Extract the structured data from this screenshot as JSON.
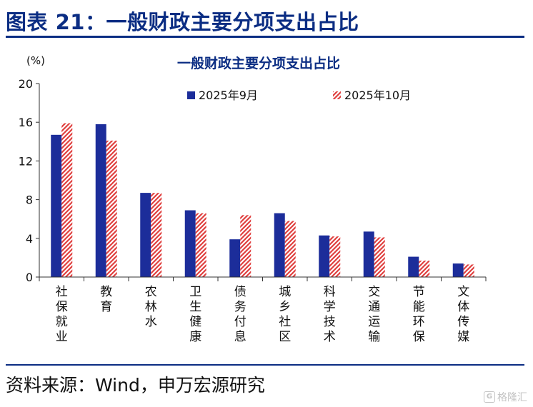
{
  "header": {
    "title": "图表 21：一般财政主要分项支出占比"
  },
  "source": "资料来源：Wind，申万宏源研究",
  "watermark": {
    "logo": "G",
    "text": "格隆汇"
  },
  "colors": {
    "primary": "#0b2d83",
    "series1": "#1c2d9a",
    "series2": "#e0403f"
  },
  "chart_data": {
    "type": "bar",
    "title": "一般财政主要分项支出占比",
    "ylabel": "(%)",
    "xlabel": "",
    "ylim": [
      0,
      20
    ],
    "yticks": [
      0,
      4,
      8,
      12,
      16,
      20
    ],
    "categories": [
      "社保就业",
      "教育",
      "农林水",
      "卫生健康",
      "债务付息",
      "城乡社区",
      "科学技术",
      "交通运输",
      "节能环保",
      "文体传媒"
    ],
    "series": [
      {
        "name": "2025年9月",
        "pattern": "solid",
        "values": [
          14.7,
          15.8,
          8.7,
          6.9,
          3.9,
          6.6,
          4.3,
          4.7,
          2.1,
          1.4
        ]
      },
      {
        "name": "2025年10月",
        "pattern": "hatched",
        "values": [
          15.9,
          14.1,
          8.7,
          6.6,
          6.4,
          5.8,
          4.2,
          4.1,
          1.7,
          1.3
        ]
      }
    ],
    "legend_position": "top",
    "grid": false
  }
}
